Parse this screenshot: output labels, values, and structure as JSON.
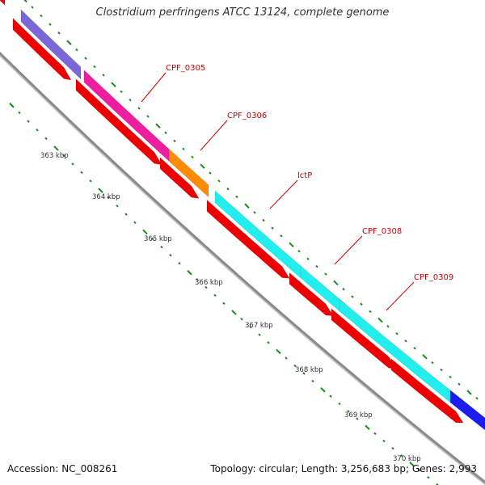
{
  "title": "Clostridium perfringens ATCC 13124, complete genome",
  "footer": {
    "accession": "Accession: NC_008261",
    "summary": "Topology: circular; Length: 3,256,683 bp; Genes: 2,993"
  },
  "colors": {
    "backbone": "#8a8a8a",
    "ticks": "#1a8a1a",
    "cds": "#ee0000",
    "label_line": "#cc0000",
    "label_text": "#cc0000",
    "kbp_label": "#333333"
  },
  "scale": {
    "unit": "kbp",
    "labels": [
      "363 kbp",
      "364 kbp",
      "365 kbp",
      "366 kbp",
      "367 kbp",
      "368 kbp",
      "369 kbp",
      "370 kbp"
    ]
  },
  "genes": [
    {
      "name": "",
      "color": "#7b68d8"
    },
    {
      "name": "CPF_0305",
      "color": "#ee1ea0"
    },
    {
      "name": "CPF_0306",
      "color": "#ff8c00"
    },
    {
      "name": "lctP",
      "color": "#22eeee"
    },
    {
      "name": "CPF_0308",
      "color": "#22eeee"
    },
    {
      "name": "CPF_0309",
      "color": "#22eeee"
    },
    {
      "name": "",
      "color": "#1c1cee"
    }
  ]
}
